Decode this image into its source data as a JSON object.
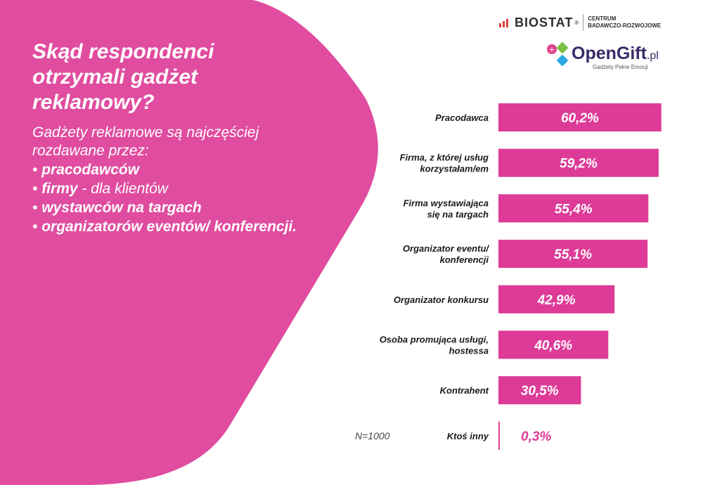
{
  "heading": {
    "title": "Skąd respondenci otrzymali gadżet reklamowy?",
    "subtitle": "Gadżety reklamowe są najczęściej rozdawane przez:",
    "bullets": [
      {
        "bold": "pracodawców",
        "rest": ""
      },
      {
        "bold": "firmy",
        "rest": " - dla klientów"
      },
      {
        "bold": "wystawców na targach",
        "rest": ""
      },
      {
        "bold": "organizatorów eventów/ konferencji.",
        "rest": ""
      }
    ]
  },
  "logos": {
    "biostat_name": "BIOSTAT",
    "biostat_reg": "®",
    "biostat_sub_1": "CENTRUM",
    "biostat_sub_2": "BADAWCZO-ROZWOJOWE",
    "opengift_name": "OpenGift",
    "opengift_tld": ".pl",
    "opengift_tagline": "Gadżety Pełne Emocji"
  },
  "sample_note": "N=1000",
  "colors": {
    "accent": "#dd3b97",
    "bg_shape": "#e04c9f",
    "text_dark": "#1a1a1a"
  },
  "chart_data": {
    "type": "bar",
    "orientation": "horizontal",
    "title": "Skąd respondenci otrzymali gadżet reklamowy?",
    "xlim": [
      0,
      100
    ],
    "categories": [
      [
        "Pracodawca"
      ],
      [
        "Firma, z której usług",
        "korzystałam/em"
      ],
      [
        "Firma wystawiająca",
        "się na targach"
      ],
      [
        "Organizator eventu/",
        "konferencji"
      ],
      [
        "Organizator konkursu"
      ],
      [
        "Osoba promująca usługi,",
        "hostessa"
      ],
      [
        "Kontrahent"
      ],
      [
        "Ktoś inny"
      ]
    ],
    "values": [
      60.2,
      59.2,
      55.4,
      55.1,
      42.9,
      40.6,
      30.5,
      0.3
    ],
    "labels": [
      "60,2%",
      "59,2%",
      "55,4%",
      "55,1%",
      "42,9%",
      "40,6%",
      "30,5%",
      "0,3%"
    ]
  }
}
